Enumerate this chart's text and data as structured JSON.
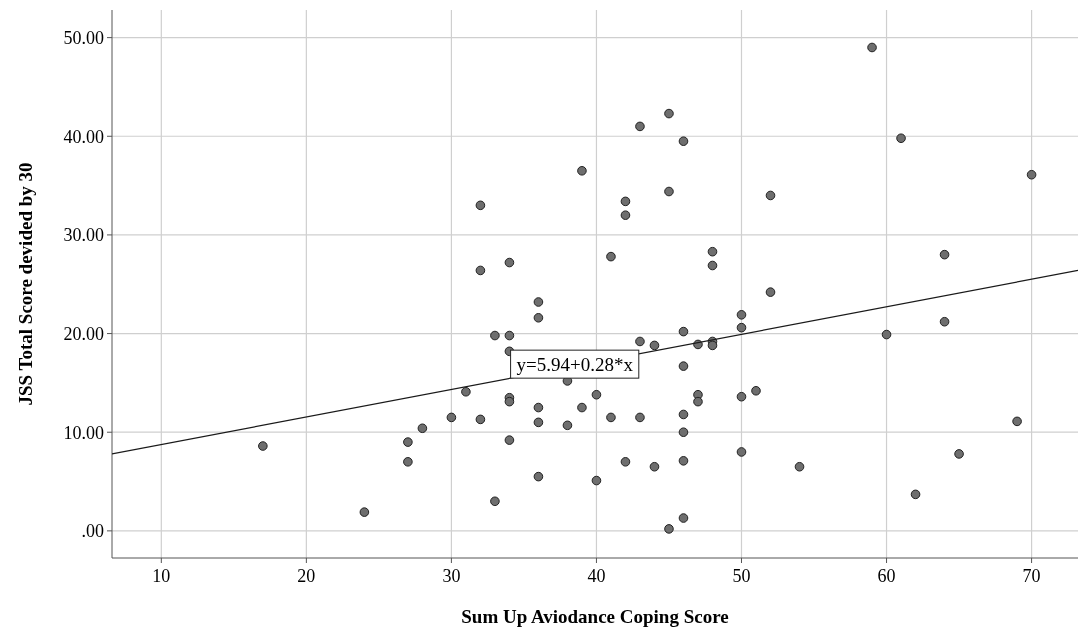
{
  "chart_data": {
    "type": "scatter",
    "xlabel": "Sum Up Aviodance Coping Score",
    "ylabel": "JSS Total Score devided by 30",
    "xlim": [
      6.6,
      73.2
    ],
    "xticks": [
      10,
      20,
      30,
      40,
      50,
      60,
      70
    ],
    "ylim": [
      -2.75,
      52.8
    ],
    "yticks": [
      {
        "value": 0,
        "label": ".00"
      },
      {
        "value": 10,
        "label": "10.00"
      },
      {
        "value": 20,
        "label": "20.00"
      },
      {
        "value": 30,
        "label": "30.00"
      },
      {
        "value": 40,
        "label": "40.00"
      },
      {
        "value": 50,
        "label": "50.00"
      }
    ],
    "grid": true,
    "marker": "circle",
    "annotations": [
      {
        "text": "y=5.94+0.28*x",
        "x": 38.5,
        "y": 16.9
      }
    ],
    "series": [
      {
        "color": "#6e6e6e",
        "x": [
          17,
          24,
          27,
          27,
          28,
          30,
          31,
          32,
          32,
          32,
          33,
          33,
          34,
          34,
          34,
          34,
          34,
          34,
          36,
          36,
          36,
          36,
          36,
          38,
          38,
          39,
          39,
          40,
          40,
          41,
          41,
          42,
          42,
          42,
          43,
          43,
          43,
          44,
          44,
          45,
          45,
          45,
          46,
          46,
          46,
          46,
          46,
          46,
          46,
          47,
          47,
          47,
          48,
          48,
          48,
          48,
          50,
          50,
          50,
          50,
          51,
          52,
          52,
          54,
          59,
          60,
          61,
          62,
          64,
          64,
          65,
          69,
          70
        ],
        "values": [
          8.6,
          1.9,
          9.0,
          7.0,
          10.4,
          11.5,
          14.1,
          33.0,
          26.4,
          11.3,
          19.8,
          3.0,
          27.2,
          19.8,
          18.2,
          13.5,
          13.1,
          9.2,
          23.2,
          21.6,
          12.5,
          11.0,
          5.5,
          15.2,
          10.7,
          36.5,
          12.5,
          13.8,
          5.1,
          27.8,
          11.5,
          33.4,
          32.0,
          7.0,
          41.0,
          19.2,
          11.5,
          18.8,
          6.5,
          42.3,
          34.4,
          0.2,
          39.5,
          20.2,
          16.7,
          11.8,
          10.0,
          7.1,
          1.3,
          18.9,
          13.8,
          13.1,
          28.3,
          26.9,
          19.2,
          18.8,
          21.9,
          20.6,
          13.6,
          8.0,
          14.2,
          34.0,
          24.2,
          6.5,
          49.0,
          19.9,
          39.8,
          3.7,
          28.0,
          21.2,
          7.8,
          11.1,
          36.1
        ]
      },
      {
        "type": "line",
        "color": "#1a1a1a",
        "line_style": "solid",
        "marker": "none",
        "x": [
          6.6,
          73.2
        ],
        "values": [
          7.8,
          26.4
        ]
      }
    ]
  }
}
